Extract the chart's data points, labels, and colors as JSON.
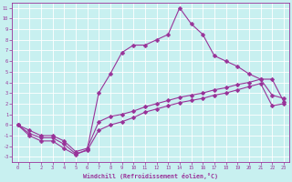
{
  "xlabel": "Windchill (Refroidissement éolien,°C)",
  "background_color": "#c8f0f0",
  "line_color": "#993399",
  "grid_color": "#ffffff",
  "xlim": [
    -0.5,
    23.5
  ],
  "ylim": [
    -3.5,
    11.5
  ],
  "xticks": [
    0,
    1,
    2,
    3,
    4,
    5,
    6,
    7,
    8,
    9,
    10,
    11,
    12,
    13,
    14,
    15,
    16,
    17,
    18,
    19,
    20,
    21,
    22,
    23
  ],
  "yticks": [
    -3,
    -2,
    -1,
    0,
    1,
    2,
    3,
    4,
    5,
    6,
    7,
    8,
    9,
    10,
    11
  ],
  "lines": [
    {
      "x": [
        0,
        1,
        2,
        3,
        4,
        5,
        6,
        7,
        8,
        9,
        10,
        11,
        12,
        13,
        14,
        15,
        16,
        17,
        18,
        19,
        20,
        21,
        22,
        23
      ],
      "y": [
        0,
        -0.5,
        -1.0,
        -1.0,
        -1.5,
        -2.5,
        -2.2,
        0.3,
        0.8,
        1.0,
        1.3,
        1.7,
        2.0,
        2.3,
        2.6,
        2.8,
        3.0,
        3.3,
        3.5,
        3.8,
        4.0,
        4.3,
        4.3,
        2.2
      ],
      "marker": "D",
      "markersize": 2.0,
      "linewidth": 0.8
    },
    {
      "x": [
        0,
        1,
        2,
        3,
        4,
        5,
        6,
        7,
        8,
        9,
        10,
        11,
        12,
        13,
        14,
        15,
        16,
        17,
        18,
        19,
        20,
        21,
        22,
        23
      ],
      "y": [
        0,
        -0.8,
        -1.2,
        -1.2,
        -1.8,
        -2.7,
        -2.4,
        -0.5,
        0.0,
        0.3,
        0.7,
        1.2,
        1.5,
        1.8,
        2.1,
        2.3,
        2.5,
        2.8,
        3.0,
        3.3,
        3.6,
        3.9,
        1.8,
        2.0
      ],
      "marker": "D",
      "markersize": 2.0,
      "linewidth": 0.8
    },
    {
      "x": [
        0,
        1,
        2,
        3,
        4,
        5,
        6,
        7,
        8,
        9,
        10,
        11,
        12,
        13,
        14,
        15,
        16,
        17,
        18,
        19,
        20,
        21,
        22,
        23
      ],
      "y": [
        0,
        -1.0,
        -1.5,
        -1.5,
        -2.2,
        -2.8,
        -2.3,
        3.0,
        4.8,
        6.8,
        7.5,
        7.5,
        8.0,
        8.5,
        11.0,
        9.5,
        8.5,
        6.5,
        6.0,
        5.5,
        4.8,
        4.3,
        2.8,
        2.5
      ],
      "marker": "P",
      "markersize": 2.5,
      "linewidth": 0.8
    }
  ]
}
